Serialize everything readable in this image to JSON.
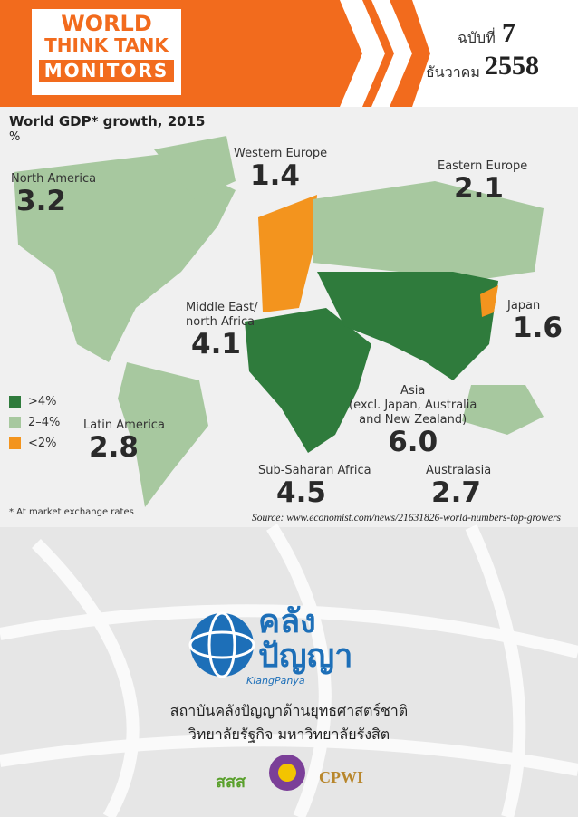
{
  "header": {
    "logo": [
      "WORLD",
      "THINK TANK",
      "MONITORS"
    ],
    "issue_label": "ฉบับที่",
    "issue_number": "7",
    "month": "ธันวาคม",
    "year": "2558"
  },
  "map": {
    "title": "World GDP* growth, 2015",
    "unit": "%",
    "regions": [
      {
        "name": [
          "North America"
        ],
        "value": "3.2"
      },
      {
        "name": [
          "Western Europe"
        ],
        "value": "1.4"
      },
      {
        "name": [
          "Eastern Europe"
        ],
        "value": "2.1"
      },
      {
        "name": [
          "Middle East/",
          "north Africa"
        ],
        "value": "4.1"
      },
      {
        "name": [
          "Japan"
        ],
        "value": "1.6"
      },
      {
        "name": [
          "Asia",
          "(excl. Japan, Australia",
          "and New Zealand)"
        ],
        "value": "6.0"
      },
      {
        "name": [
          "Latin America"
        ],
        "value": "2.8"
      },
      {
        "name": [
          "Sub-Saharan Africa"
        ],
        "value": "4.5"
      },
      {
        "name": [
          "Australasia"
        ],
        "value": "2.7"
      }
    ],
    "legend": [
      {
        "label": ">4%",
        "color": "#2f7b3c"
      },
      {
        "label": "2–4%",
        "color": "#a7c89f"
      },
      {
        "label": "<2%",
        "color": "#f3941e"
      }
    ],
    "footnote": "* At market exchange rates",
    "source": "Source: www.economist.com/news/21631826-world-numbers-top-growers"
  },
  "footer": {
    "brand": [
      "คลัง",
      "ปัญญา"
    ],
    "brand_latin": "KlangPanya",
    "lines": [
      "สถาบันคลังปัญญาด้านยุทธศาสตร์ชาติ",
      "วิทยาลัยรัฐกิจ มหาวิทยาลัยรังสิต"
    ],
    "partners": [
      "สสส",
      "CPWI"
    ]
  }
}
